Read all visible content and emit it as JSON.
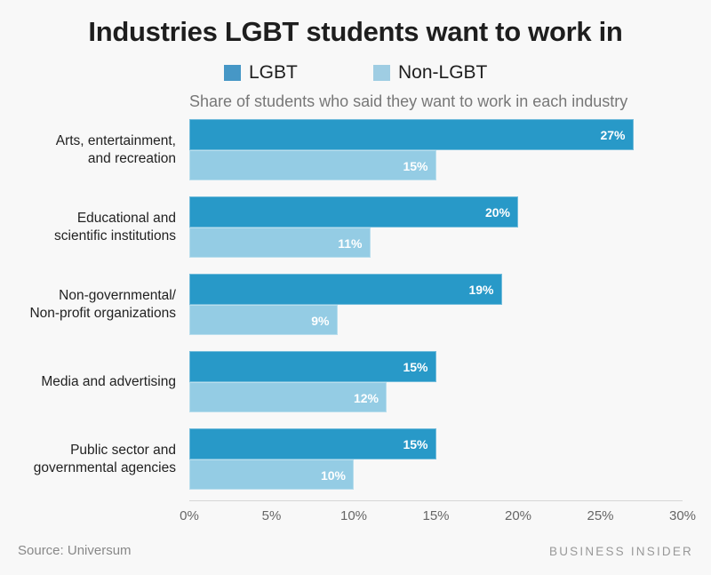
{
  "title": "Industries LGBT students want to work in",
  "subtitle": "Share of students who said they want to work in each industry",
  "legend": [
    {
      "label": "LGBT",
      "color": "#4697c6"
    },
    {
      "label": "Non-LGBT",
      "color": "#9fcde3"
    }
  ],
  "colors": {
    "lgbt": "#2899c8",
    "non_lgbt": "#94cce4"
  },
  "footer": {
    "source": "Source: Universum",
    "brand": "BUSINESS INSIDER"
  },
  "chart_data": {
    "type": "bar",
    "orientation": "horizontal",
    "title": "Industries LGBT students want to work in",
    "subtitle": "Share of students who said they want to work in each industry",
    "categories": [
      "Arts, entertainment, and recreation",
      "Educational and scientific institutions",
      "Non-governmental/ Non-profit organizations",
      "Media and advertising",
      "Public sector and governmental agencies"
    ],
    "category_lines": [
      [
        "Arts, entertainment,",
        "and recreation"
      ],
      [
        "Educational and",
        "scientific institutions"
      ],
      [
        "Non-governmental/",
        "Non-profit organizations"
      ],
      [
        "Media and advertising"
      ],
      [
        "Public sector and",
        "governmental agencies"
      ]
    ],
    "series": [
      {
        "name": "LGBT",
        "values": [
          27,
          20,
          19,
          15,
          15
        ],
        "labels": [
          "27%",
          "20%",
          "19%",
          "15%",
          "15%"
        ]
      },
      {
        "name": "Non-LGBT",
        "values": [
          15,
          11,
          9,
          12,
          10
        ],
        "labels": [
          "15%",
          "11%",
          "9%",
          "12%",
          "10%"
        ]
      }
    ],
    "xlabel": "",
    "ylabel": "",
    "xlim": [
      0,
      30
    ],
    "xticks": [
      "0%",
      "5%",
      "10%",
      "15%",
      "20%",
      "25%",
      "30%"
    ],
    "legend_position": "top",
    "grid": false,
    "source": "Source: Universum"
  }
}
